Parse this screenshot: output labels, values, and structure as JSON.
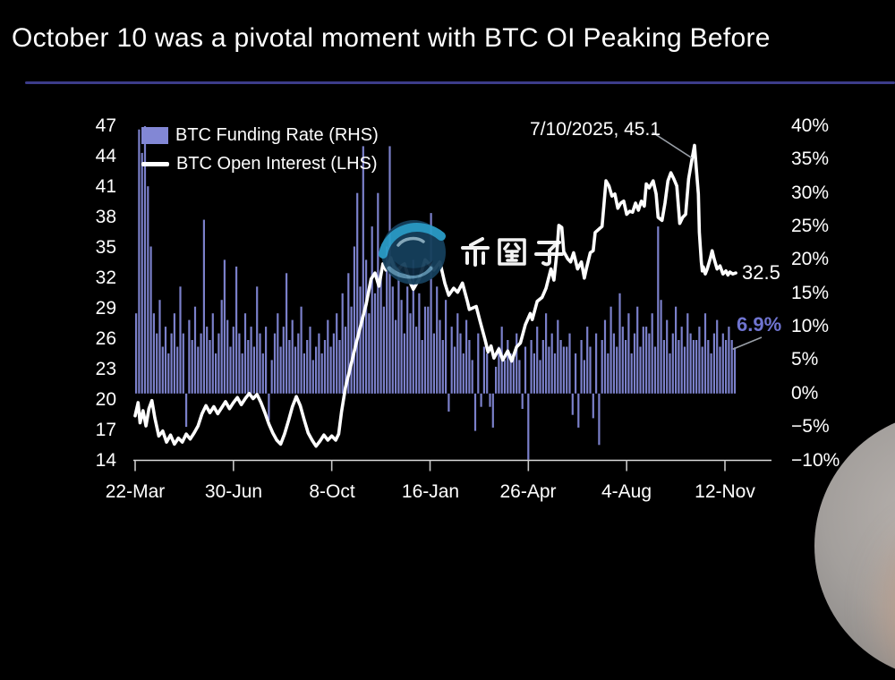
{
  "title": "October 10 was a pivotal moment with BTC OI Peaking Before",
  "colors": {
    "background": "#000000",
    "bar": "#8287d5",
    "line": "#ffffff",
    "divider": "#3c3c8a",
    "funding_label": "#6f74d0",
    "axis_line": "#dcdcdc",
    "tick": "#c8c8c8",
    "leader": "#9aa0a8",
    "watermark_teal": "#2b9cc8"
  },
  "legend": {
    "funding_label": "BTC Funding Rate (RHS)",
    "open_interest_label": "BTC Open Interest (LHS)"
  },
  "annotations": {
    "peak_label": "7/10/2025, 45.1",
    "oi_last_label": "32.5",
    "funding_last_label": "6.9%"
  },
  "watermark": {
    "text": "币圈子"
  },
  "chart_data": {
    "type": "combo",
    "title": "October 10 was a pivotal moment with BTC OI Peaking Before",
    "grid": false,
    "legend_position": "top-left",
    "x_axis": {
      "tick_labels": [
        "22-Mar",
        "30-Jun",
        "8-Oct",
        "16-Jan",
        "26-Apr",
        "4-Aug",
        "12-Nov"
      ],
      "tick_days": [
        0,
        100,
        200,
        300,
        400,
        500,
        600
      ]
    },
    "left_axis": {
      "ticks": [
        47,
        44,
        41,
        38,
        35,
        32,
        29,
        26,
        23,
        20,
        17,
        14
      ],
      "range": [
        14,
        47
      ]
    },
    "right_axis": {
      "ticks": [
        "40%",
        "35%",
        "30%",
        "25%",
        "20%",
        "15%",
        "10%",
        "5%",
        "0%",
        "−5%",
        "−10%"
      ],
      "range": [
        -10,
        40
      ]
    },
    "peak_annotation": {
      "label": "7/10/2025, 45.1",
      "day": 569,
      "value": 45.1
    },
    "last_values": {
      "open_interest": 32.5,
      "funding_rate_pct": 6.9
    },
    "series": [
      {
        "name": "BTC Funding Rate (RHS)",
        "type": "bar",
        "axis": "right",
        "unit": "%",
        "start_day": 1,
        "step_days": 3,
        "values": [
          12,
          39.5,
          36,
          40,
          31,
          22,
          12,
          9,
          14,
          7,
          10,
          6,
          9,
          12,
          7,
          16,
          9,
          -5,
          11,
          8,
          13,
          7,
          9,
          26,
          10,
          8,
          12,
          6,
          9,
          14,
          20,
          11,
          7,
          10,
          19,
          9,
          6,
          12,
          8,
          10,
          7,
          16,
          9,
          6,
          10,
          -4,
          5,
          9,
          12,
          7,
          10,
          18,
          8,
          11,
          7,
          9,
          13,
          6,
          8,
          10,
          5,
          7,
          9,
          6,
          8,
          11,
          7,
          9,
          12,
          8,
          15,
          10,
          18,
          13,
          22,
          30,
          16,
          37,
          20,
          12,
          25,
          15,
          30,
          18,
          13,
          22,
          37,
          16,
          11,
          19,
          14,
          9,
          16,
          12,
          20,
          10,
          15,
          8,
          13,
          13,
          27,
          9,
          16,
          11,
          8,
          14,
          -2.7,
          10,
          7,
          12,
          9,
          6,
          11,
          8,
          5,
          -5.6,
          9,
          -2,
          7,
          6,
          -2,
          -5.1,
          4,
          7,
          10,
          5,
          8,
          6,
          6,
          9,
          5,
          -2.3,
          7,
          -9.9,
          8,
          6,
          10,
          5,
          8,
          12,
          7,
          9,
          6,
          11,
          8,
          7,
          7,
          9,
          -3.2,
          6,
          -5.1,
          8,
          5,
          10,
          7,
          -3.7,
          9,
          -7.7,
          8,
          11,
          6,
          13,
          9,
          7,
          15,
          10,
          8,
          12,
          6,
          9,
          13,
          7,
          10,
          10,
          9,
          12,
          7,
          25,
          14,
          8,
          11,
          6,
          9,
          13,
          8,
          10,
          7,
          12,
          9,
          8,
          8,
          10,
          7,
          12,
          8,
          6,
          9,
          11,
          7,
          9,
          8,
          10,
          8,
          6.9
        ]
      },
      {
        "name": "BTC Open Interest (LHS)",
        "type": "line",
        "axis": "left",
        "points": [
          [
            0,
            18.4
          ],
          [
            3,
            19.7
          ],
          [
            5,
            17.7
          ],
          [
            8,
            18.9
          ],
          [
            11,
            17.4
          ],
          [
            14,
            19.1
          ],
          [
            17,
            19.9
          ],
          [
            20,
            18.2
          ],
          [
            24,
            16.4
          ],
          [
            28,
            16.9
          ],
          [
            32,
            15.8
          ],
          [
            36,
            16.5
          ],
          [
            40,
            15.6
          ],
          [
            44,
            16.2
          ],
          [
            48,
            15.8
          ],
          [
            52,
            16.6
          ],
          [
            56,
            16.1
          ],
          [
            60,
            16.7
          ],
          [
            64,
            17.4
          ],
          [
            68,
            18.6
          ],
          [
            72,
            19.4
          ],
          [
            76,
            18.7
          ],
          [
            80,
            19.3
          ],
          [
            84,
            18.6
          ],
          [
            88,
            19.2
          ],
          [
            92,
            19.8
          ],
          [
            96,
            19.1
          ],
          [
            100,
            19.7
          ],
          [
            104,
            20.2
          ],
          [
            108,
            19.5
          ],
          [
            112,
            20.1
          ],
          [
            116,
            20.6
          ],
          [
            120,
            20.1
          ],
          [
            124,
            20.5
          ],
          [
            128,
            19.7
          ],
          [
            132,
            18.7
          ],
          [
            136,
            17.6
          ],
          [
            140,
            16.7
          ],
          [
            144,
            16.0
          ],
          [
            148,
            15.6
          ],
          [
            152,
            16.6
          ],
          [
            156,
            17.9
          ],
          [
            160,
            19.3
          ],
          [
            164,
            20.3
          ],
          [
            168,
            19.4
          ],
          [
            172,
            18.0
          ],
          [
            176,
            16.7
          ],
          [
            180,
            16.0
          ],
          [
            184,
            15.4
          ],
          [
            188,
            15.9
          ],
          [
            192,
            16.5
          ],
          [
            196,
            16.0
          ],
          [
            200,
            16.4
          ],
          [
            204,
            16.0
          ],
          [
            207,
            16.6
          ],
          [
            210,
            18.8
          ],
          [
            214,
            21.2
          ],
          [
            219,
            23.2
          ],
          [
            225,
            25.6
          ],
          [
            231,
            27.9
          ],
          [
            235,
            29.4
          ],
          [
            240,
            31.9
          ],
          [
            244,
            32.5
          ],
          [
            248,
            31.2
          ],
          [
            252,
            33.4
          ],
          [
            255,
            32.8
          ],
          [
            260,
            34.0
          ],
          [
            263,
            33.1
          ],
          [
            267,
            32.7
          ],
          [
            271,
            33.2
          ],
          [
            274,
            33.4
          ],
          [
            280,
            31.5
          ],
          [
            283,
            30.9
          ],
          [
            289,
            31.9
          ],
          [
            295,
            33.8
          ],
          [
            299,
            33.4
          ],
          [
            304,
            32.8
          ],
          [
            310,
            33.6
          ],
          [
            315,
            31.5
          ],
          [
            319,
            30.3
          ],
          [
            324,
            31.0
          ],
          [
            328,
            30.6
          ],
          [
            333,
            31.5
          ],
          [
            338,
            29.7
          ],
          [
            340,
            28.9
          ],
          [
            347,
            29.2
          ],
          [
            351,
            27.7
          ],
          [
            356,
            25.9
          ],
          [
            359,
            24.7
          ],
          [
            362,
            25.3
          ],
          [
            365,
            24.1
          ],
          [
            370,
            25.0
          ],
          [
            374,
            23.9
          ],
          [
            379,
            24.8
          ],
          [
            383,
            23.8
          ],
          [
            388,
            25.2
          ],
          [
            392,
            25.6
          ],
          [
            397,
            27.4
          ],
          [
            402,
            28.5
          ],
          [
            404,
            27.9
          ],
          [
            409,
            29.7
          ],
          [
            414,
            30.1
          ],
          [
            418,
            31.0
          ],
          [
            423,
            32.9
          ],
          [
            426,
            31.8
          ],
          [
            429,
            34.5
          ],
          [
            431,
            37.2
          ],
          [
            434,
            37.0
          ],
          [
            436,
            34.6
          ],
          [
            440,
            33.9
          ],
          [
            443,
            33.6
          ],
          [
            446,
            34.5
          ],
          [
            450,
            32.9
          ],
          [
            454,
            33.6
          ],
          [
            457,
            32.0
          ],
          [
            459,
            32.9
          ],
          [
            463,
            34.5
          ],
          [
            466,
            34.7
          ],
          [
            468,
            36.5
          ],
          [
            475,
            37.1
          ],
          [
            479,
            41.6
          ],
          [
            482,
            41.1
          ],
          [
            485,
            40.1
          ],
          [
            488,
            40.3
          ],
          [
            491,
            38.9
          ],
          [
            494,
            39.4
          ],
          [
            497,
            39.6
          ],
          [
            500,
            38.3
          ],
          [
            503,
            38.6
          ],
          [
            506,
            38.5
          ],
          [
            509,
            39.4
          ],
          [
            512,
            38.7
          ],
          [
            515,
            39.6
          ],
          [
            518,
            39.1
          ],
          [
            520,
            41.3
          ],
          [
            523,
            40.9
          ],
          [
            527,
            41.6
          ],
          [
            530,
            40.3
          ],
          [
            532,
            38.0
          ],
          [
            536,
            37.7
          ],
          [
            539,
            39.4
          ],
          [
            542,
            41.6
          ],
          [
            545,
            42.4
          ],
          [
            548,
            41.8
          ],
          [
            551,
            41.1
          ],
          [
            554,
            37.4
          ],
          [
            557,
            38.0
          ],
          [
            560,
            38.3
          ],
          [
            563,
            41.8
          ],
          [
            566,
            43.5
          ],
          [
            569,
            45.1
          ],
          [
            571,
            42.7
          ],
          [
            573,
            40.3
          ],
          [
            574,
            36.5
          ],
          [
            576,
            33.6
          ],
          [
            577,
            32.7
          ],
          [
            578,
            33.1
          ],
          [
            580,
            32.4
          ],
          [
            582,
            32.9
          ],
          [
            585,
            33.9
          ],
          [
            587,
            34.7
          ],
          [
            589,
            33.9
          ],
          [
            592,
            32.9
          ],
          [
            595,
            33.2
          ],
          [
            598,
            32.4
          ],
          [
            601,
            32.7
          ],
          [
            603,
            32.3
          ],
          [
            605,
            32.6
          ],
          [
            608,
            32.4
          ],
          [
            611,
            32.5
          ]
        ]
      }
    ]
  }
}
